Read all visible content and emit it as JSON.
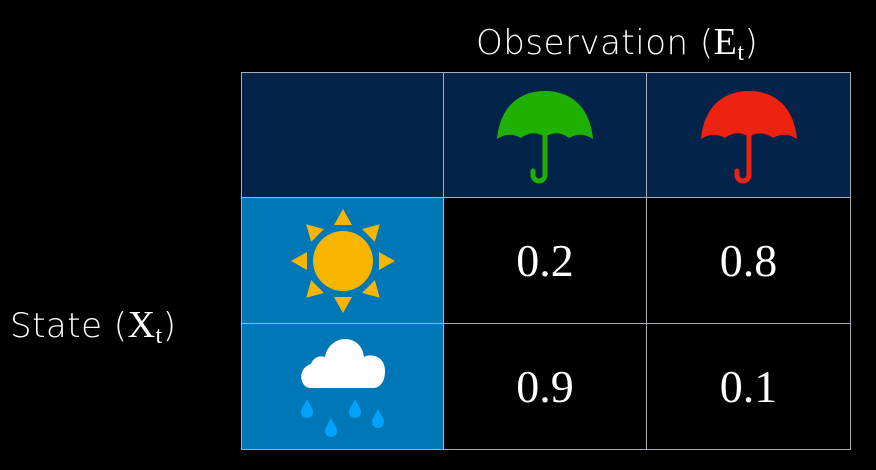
{
  "column_header": {
    "text": "Observation (",
    "var": "E",
    "sub": "t",
    "close": ")"
  },
  "row_header": {
    "text": "State (",
    "var": "X",
    "sub": "t",
    "close": ")"
  },
  "columns": [
    {
      "icon": "umbrella-icon",
      "color": "#1fb000"
    },
    {
      "icon": "umbrella-icon",
      "color": "#ee2210"
    }
  ],
  "rows": [
    {
      "icon": "sun-icon",
      "values": [
        "0.2",
        "0.8"
      ]
    },
    {
      "icon": "rain-cloud-icon",
      "values": [
        "0.9",
        "0.1"
      ]
    }
  ],
  "colors": {
    "header_bg": "#03234b",
    "row_header_bg": "#0077b6",
    "sun": "#f7b500",
    "cloud": "#ffffff",
    "rain": "#00a2ff"
  }
}
